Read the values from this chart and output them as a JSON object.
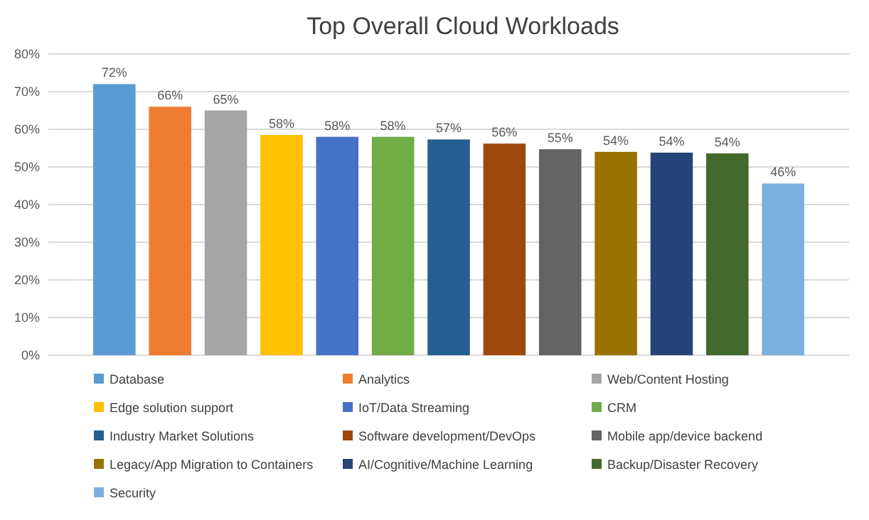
{
  "chart_data": {
    "type": "bar",
    "title": "Top Overall Cloud Workloads",
    "categories": [
      null
    ],
    "series": [
      {
        "name": "Database",
        "color": "#5b9bd5",
        "values": [
          72
        ],
        "value_labels": [
          "72%"
        ]
      },
      {
        "name": "Analytics",
        "color": "#ed7d31",
        "values": [
          66
        ],
        "value_labels": [
          "66%"
        ]
      },
      {
        "name": "Web/Content Hosting",
        "color": "#a5a5a5",
        "values": [
          65
        ],
        "value_labels": [
          "65%"
        ]
      },
      {
        "name": "Edge solution support",
        "color": "#ffc000",
        "values": [
          58.5
        ],
        "value_labels": [
          "58%"
        ]
      },
      {
        "name": "IoT/Data Streaming",
        "color": "#4472c4",
        "values": [
          58
        ],
        "value_labels": [
          "58%"
        ]
      },
      {
        "name": "CRM",
        "color": "#70ad47",
        "values": [
          58
        ],
        "value_labels": [
          "58%"
        ]
      },
      {
        "name": "Industry Market Solutions",
        "color": "#255e91",
        "values": [
          57.3
        ],
        "value_labels": [
          "57%"
        ]
      },
      {
        "name": "Software development/DevOps",
        "color": "#9e480e",
        "values": [
          56.2
        ],
        "value_labels": [
          "56%"
        ]
      },
      {
        "name": "Mobile app/device backend",
        "color": "#636363",
        "values": [
          54.7
        ],
        "value_labels": [
          "55%"
        ]
      },
      {
        "name": "Legacy/App Migration to Containers",
        "color": "#997300",
        "values": [
          54
        ],
        "value_labels": [
          "54%"
        ]
      },
      {
        "name": "AI/Cognitive/Machine Learning",
        "color": "#264478",
        "values": [
          53.8
        ],
        "value_labels": [
          "54%"
        ]
      },
      {
        "name": "Backup/Disaster Recovery",
        "color": "#43682b",
        "values": [
          53.6
        ],
        "value_labels": [
          "54%"
        ]
      },
      {
        "name": "Security",
        "color": "#7cafdd",
        "values": [
          45.6
        ],
        "value_labels": [
          "46%"
        ]
      }
    ],
    "ylim": [
      0,
      80
    ],
    "yticks": [
      {
        "value": 0,
        "label": "0%"
      },
      {
        "value": 10,
        "label": "10%"
      },
      {
        "value": 20,
        "label": "20%"
      },
      {
        "value": 30,
        "label": "30%"
      },
      {
        "value": 40,
        "label": "40%"
      },
      {
        "value": 50,
        "label": "50%"
      },
      {
        "value": 60,
        "label": "60%"
      },
      {
        "value": 70,
        "label": "70%"
      },
      {
        "value": 80,
        "label": "80%"
      }
    ],
    "grid": "y",
    "legend": "bottom"
  }
}
